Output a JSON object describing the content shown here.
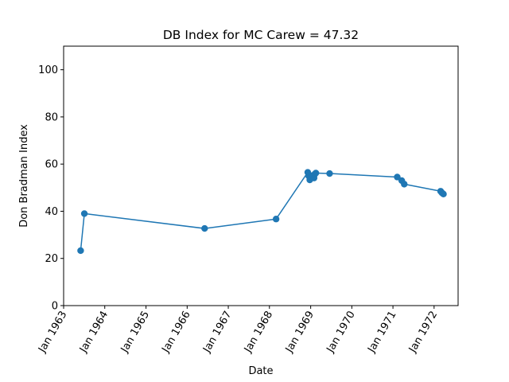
{
  "chart_data": {
    "type": "line",
    "title": "DB Index for MC Carew = 47.32",
    "xlabel": "Date",
    "ylabel": "Don Bradman Index",
    "ylim": [
      0,
      110
    ],
    "xlim": [
      "1963-01-01",
      "1972-08-01"
    ],
    "x_ticks": [
      "1963-01-01",
      "1964-01-01",
      "1965-01-01",
      "1966-01-01",
      "1967-01-01",
      "1968-01-01",
      "1969-01-01",
      "1970-01-01",
      "1971-01-01",
      "1972-01-01"
    ],
    "x_tick_labels": [
      "Jan 1963",
      "Jan 1964",
      "Jan 1965",
      "Jan 1966",
      "Jan 1967",
      "Jan 1968",
      "Jan 1969",
      "Jan 1970",
      "Jan 1971",
      "Jan 1972"
    ],
    "y_ticks": [
      0,
      20,
      40,
      60,
      80,
      100
    ],
    "y_tick_labels": [
      "0",
      "20",
      "40",
      "60",
      "80",
      "100"
    ],
    "grid": false,
    "color": "#1f77b4",
    "series": [
      {
        "x": [
          "1963-06-01",
          "1963-07-04",
          "1966-06-05",
          "1968-02-29",
          "1968-12-06",
          "1968-12-14",
          "1968-12-24",
          "1969-01-08",
          "1969-01-20",
          "1969-01-31",
          "1969-02-08",
          "1969-02-16",
          "1969-06-18",
          "1971-02-08",
          "1971-03-20",
          "1971-04-11",
          "1972-02-28",
          "1972-03-11",
          "1972-03-24"
        ],
        "y": [
          23.3,
          39.0,
          32.7,
          36.7,
          56.5,
          55.0,
          53.3,
          54.8,
          55.2,
          54.1,
          55.8,
          56.2,
          56.0,
          54.5,
          53.0,
          51.5,
          48.5,
          47.8,
          47.3
        ]
      }
    ]
  }
}
